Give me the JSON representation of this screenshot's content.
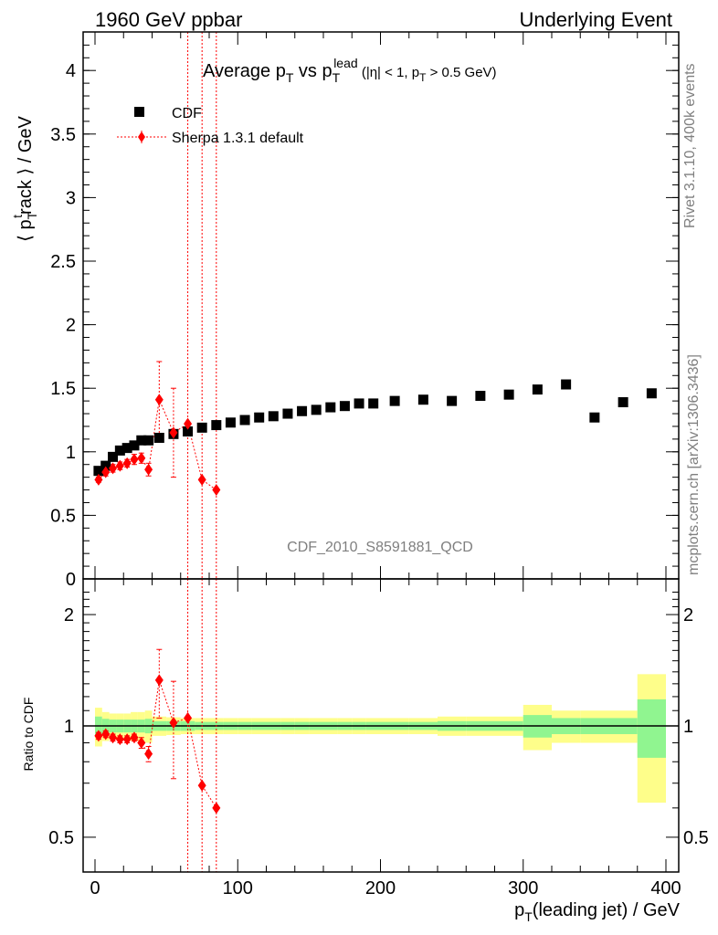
{
  "header": {
    "left": "1960 GeV ppbar",
    "right": "Underlying Event"
  },
  "side_labels": {
    "rivet": "Rivet 3.1.10,  400k events",
    "mcplots": "mcplots.cern.ch [arXiv:1306.3436]"
  },
  "watermark": "CDF_2010_S8591881_QCD",
  "chart_data": [
    {
      "type": "scatter",
      "panel": "main",
      "title": {
        "main": "Average p",
        "sub1": "T",
        "mid": " vs p",
        "sub2": "T",
        "sup2": "lead",
        "cond": " (|η| < 1, p",
        "cond_sub": "T",
        "cond_end": " > 0.5 GeV)"
      },
      "ylabel": {
        "a": "⟨ p",
        "sub": "T",
        "sup": "t",
        "b": "rack ⟩ / GeV"
      },
      "xlim": [
        -10,
        410
      ],
      "ylim": [
        0,
        4.3
      ],
      "yticks": [
        "0",
        "0.5",
        "1",
        "1.5",
        "2",
        "2.5",
        "3",
        "3.5",
        "4"
      ],
      "grid": false,
      "legend_position": "top-left",
      "series": [
        {
          "name": "CDF",
          "color": "#000000",
          "marker": "square",
          "x": [
            2.5,
            7.5,
            12.5,
            17.5,
            22.5,
            27.5,
            32.5,
            37.5,
            45,
            55,
            65,
            75,
            85,
            95,
            105,
            115,
            125,
            135,
            145,
            155,
            165,
            175,
            185,
            195,
            210,
            230,
            250,
            270,
            290,
            310,
            330,
            350,
            370,
            390
          ],
          "y": [
            0.85,
            0.89,
            0.96,
            1.01,
            1.03,
            1.05,
            1.09,
            1.09,
            1.11,
            1.14,
            1.16,
            1.19,
            1.21,
            1.23,
            1.25,
            1.27,
            1.28,
            1.3,
            1.32,
            1.33,
            1.35,
            1.36,
            1.38,
            1.38,
            1.4,
            1.41,
            1.4,
            1.44,
            1.45,
            1.49,
            1.53,
            1.27,
            1.39,
            1.46
          ]
        },
        {
          "name": "Sherpa 1.3.1 default",
          "color": "#ff0000",
          "marker": "diamond",
          "line": "dotted",
          "x": [
            2.5,
            7.5,
            12.5,
            17.5,
            22.5,
            27.5,
            32.5,
            37.5,
            45,
            55,
            65,
            75,
            85
          ],
          "y": [
            0.78,
            0.84,
            0.87,
            0.89,
            0.91,
            0.94,
            0.95,
            0.86,
            1.41,
            1.15,
            1.22,
            0.78,
            0.7
          ],
          "err": [
            0.02,
            0.03,
            0.03,
            0.03,
            0.03,
            0.04,
            0.04,
            0.05,
            0.3,
            0.35,
            4.5,
            4.5,
            4.5
          ]
        }
      ]
    },
    {
      "type": "line",
      "panel": "ratio",
      "ylabel": "Ratio to CDF",
      "xlabel": {
        "a": "p",
        "sub": "T",
        "b": "(leading jet) / GeV"
      },
      "xticks": [
        "0",
        "100",
        "200",
        "300",
        "400"
      ],
      "yticks_left": [
        "0.5",
        "1",
        "2"
      ],
      "yticks_right": [
        "0.5",
        "1",
        "2"
      ],
      "ylim": [
        0.4,
        2.4
      ],
      "log_y": true,
      "bands": {
        "color_inner": "#90f590",
        "color_outer": "#fefe8a",
        "edges": [
          0,
          5,
          10,
          15,
          20,
          25,
          30,
          35,
          40,
          50,
          60,
          70,
          80,
          90,
          100,
          110,
          120,
          130,
          140,
          150,
          160,
          170,
          180,
          190,
          200,
          220,
          240,
          260,
          280,
          300,
          320,
          340,
          360,
          380,
          400
        ],
        "inner_half": [
          0.06,
          0.045,
          0.04,
          0.04,
          0.04,
          0.04,
          0.04,
          0.045,
          0.03,
          0.03,
          0.03,
          0.025,
          0.025,
          0.025,
          0.025,
          0.025,
          0.025,
          0.025,
          0.025,
          0.025,
          0.025,
          0.025,
          0.025,
          0.025,
          0.025,
          0.025,
          0.03,
          0.03,
          0.03,
          0.07,
          0.05,
          0.05,
          0.05,
          0.18
        ],
        "outer_half": [
          0.12,
          0.09,
          0.08,
          0.08,
          0.08,
          0.09,
          0.09,
          0.1,
          0.06,
          0.055,
          0.05,
          0.05,
          0.05,
          0.05,
          0.05,
          0.05,
          0.05,
          0.05,
          0.05,
          0.05,
          0.05,
          0.05,
          0.05,
          0.05,
          0.05,
          0.05,
          0.06,
          0.06,
          0.06,
          0.14,
          0.1,
          0.1,
          0.1,
          0.38
        ]
      },
      "series": [
        {
          "name": "Sherpa 1.3.1 default",
          "color": "#ff0000",
          "marker": "diamond",
          "line": "dotted",
          "x": [
            2.5,
            7.5,
            12.5,
            17.5,
            22.5,
            27.5,
            32.5,
            37.5,
            45,
            55,
            65,
            75,
            85
          ],
          "y": [
            0.94,
            0.95,
            0.93,
            0.92,
            0.92,
            0.93,
            0.9,
            0.84,
            1.33,
            1.02,
            1.05,
            0.69,
            0.6
          ],
          "err": [
            0.02,
            0.02,
            0.02,
            0.02,
            0.02,
            0.02,
            0.03,
            0.04,
            0.28,
            0.3,
            4.0,
            4.0,
            4.0
          ]
        }
      ]
    }
  ]
}
